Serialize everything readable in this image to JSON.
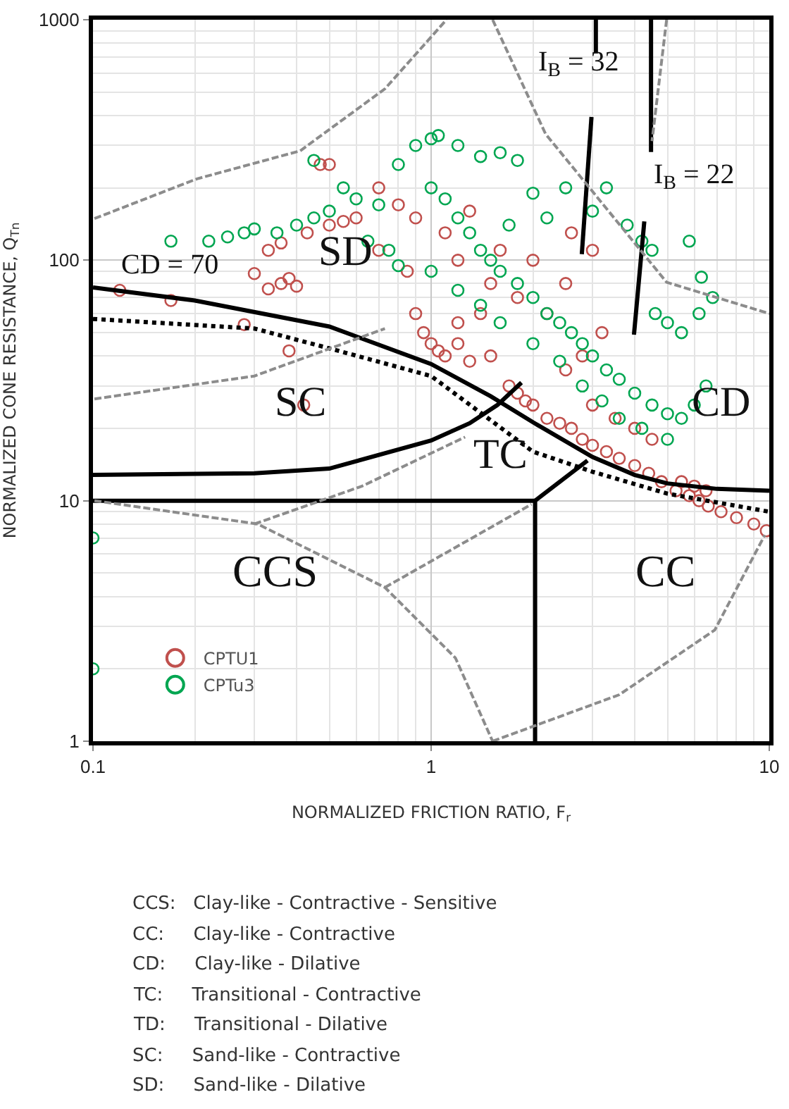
{
  "chart_data": {
    "type": "scatter",
    "xlabel": "NORMALIZED FRICTION RATIO, F$_{r}$",
    "ylabel": "NORMALIZED CONE RESISTANCE, Q$_{Tn}$",
    "log": "xy",
    "xlim": [
      0.1,
      10
    ],
    "ylim": [
      1,
      1000
    ],
    "xticks": [
      0.1,
      1,
      10
    ],
    "yticks": [
      1,
      10,
      100,
      1000
    ],
    "grid": true,
    "legend": "bottom left",
    "series": [
      {
        "name": "CPTU1",
        "color": "#c0504d",
        "marker": "circle",
        "x": [
          0.12,
          0.17,
          0.28,
          0.38,
          0.42,
          0.4,
          0.3,
          0.33,
          0.36,
          0.38,
          0.33,
          0.36,
          0.43,
          0.5,
          0.55,
          0.47,
          0.5,
          0.7,
          0.8,
          0.9,
          0.85,
          0.9,
          0.95,
          1.0,
          1.05,
          1.1,
          1.2,
          1.3,
          1.4,
          1.5,
          1.2,
          1.1,
          1.3,
          1.6,
          1.7,
          1.8,
          1.9,
          2.0,
          2.2,
          2.4,
          2.6,
          2.8,
          3.0,
          3.3,
          3.6,
          4.0,
          4.4,
          4.8,
          5.3,
          5.8,
          6.2,
          6.6,
          7.2,
          8,
          9,
          9.8,
          5.5,
          6,
          6.5,
          3.0,
          3.5,
          4,
          4.5,
          2.5,
          2.8,
          3.2,
          2.2,
          2.5,
          1.8,
          2.0,
          3.0,
          2.6,
          1.5,
          1.2,
          0.7,
          0.6
        ],
        "values": [
          75,
          68,
          54,
          42,
          25,
          78,
          88,
          76,
          80,
          84,
          110,
          118,
          130,
          140,
          145,
          250,
          250,
          200,
          170,
          150,
          90,
          60,
          50,
          45,
          42,
          40,
          45,
          38,
          60,
          80,
          100,
          130,
          160,
          110,
          30,
          28,
          26,
          25,
          22,
          21,
          20,
          18,
          17,
          16,
          15,
          14,
          13,
          12,
          11,
          10.5,
          10,
          9.5,
          9,
          8.5,
          8,
          7.5,
          12,
          11.5,
          11,
          25,
          22,
          20,
          18,
          35,
          40,
          50,
          60,
          80,
          70,
          100,
          110,
          130,
          40,
          55,
          110,
          150
        ]
      },
      {
        "name": "CPTu3",
        "color": "#00a651",
        "marker": "circle",
        "x": [
          0.1,
          0.1,
          0.17,
          0.22,
          0.25,
          0.28,
          0.3,
          0.35,
          0.4,
          0.45,
          0.5,
          0.45,
          0.55,
          0.6,
          0.7,
          0.8,
          0.9,
          1.0,
          1.05,
          1.2,
          1.4,
          1.6,
          1.8,
          1.0,
          1.1,
          1.2,
          1.3,
          1.4,
          1.5,
          1.6,
          1.8,
          2.0,
          2.2,
          2.4,
          2.6,
          2.8,
          3.0,
          3.3,
          3.6,
          4.0,
          4.5,
          5,
          5.5,
          6,
          6.5,
          0.75,
          0.8,
          1.0,
          1.2,
          1.4,
          1.6,
          2.0,
          2.4,
          2.8,
          3.2,
          3.6,
          4.2,
          5.0,
          4.6,
          5.0,
          5.5,
          6.2,
          6.8,
          6.3,
          5.8,
          4.5,
          3.3,
          3.0,
          2.5,
          2.2,
          2.0,
          1.7,
          3.8,
          4.2,
          0.65
        ],
        "values": [
          7,
          2,
          120,
          120,
          125,
          130,
          135,
          130,
          140,
          150,
          160,
          260,
          200,
          180,
          170,
          250,
          300,
          320,
          330,
          300,
          270,
          280,
          260,
          200,
          180,
          150,
          130,
          110,
          100,
          90,
          80,
          70,
          60,
          55,
          50,
          45,
          40,
          35,
          32,
          28,
          25,
          23,
          22,
          25,
          30,
          110,
          95,
          90,
          75,
          65,
          55,
          45,
          38,
          30,
          26,
          22,
          20,
          18,
          60,
          55,
          50,
          60,
          70,
          85,
          120,
          110,
          200,
          160,
          200,
          150,
          190,
          140,
          140,
          120,
          120
        ]
      },
      {
        "type": "line",
        "color": "#000000",
        "line_style": "solid",
        "x": [
          0.1,
          0.2,
          0.5,
          1,
          1.5,
          2,
          3,
          4,
          5,
          7,
          10
        ],
        "values": [
          77,
          68,
          53,
          37,
          27.2,
          21.2,
          15.2,
          12.8,
          11.8,
          11.2,
          11
        ]
      },
      {
        "type": "line",
        "color": "#000000",
        "line_style": "dotted",
        "x": [
          0.1,
          0.3,
          0.5,
          1,
          2,
          3,
          5,
          10
        ],
        "values": [
          57,
          52,
          43,
          33,
          16,
          13.2,
          10.7,
          9
        ]
      },
      {
        "type": "line",
        "color": "#000000",
        "line_style": "solid",
        "x": [
          0.1,
          0.3,
          0.5,
          1,
          1.3,
          1.57,
          1.85
        ],
        "values": [
          12.8,
          13,
          13.6,
          17.8,
          21,
          25,
          31
        ]
      },
      {
        "type": "line",
        "color": "#000000",
        "line_style": "solid",
        "x": [
          0.1,
          2.03,
          2.03
        ],
        "values": [
          10,
          10,
          1
        ]
      },
      {
        "type": "line",
        "color": "#000000",
        "line_style": "solid",
        "x": [
          2.03,
          2.9
        ],
        "values": [
          10,
          14.7
        ]
      },
      {
        "type": "line",
        "color": "#000000",
        "line_style": "solid",
        "x": [
          3.07,
          3.07
        ],
        "values": [
          1000,
          724
        ]
      },
      {
        "type": "line",
        "color": "#000000",
        "line_style": "solid",
        "x": [
          2.98,
          2.79
        ],
        "values": [
          394,
          106
        ]
      },
      {
        "type": "line",
        "color": "#000000",
        "line_style": "solid",
        "x": [
          4.47,
          4.47
        ],
        "values": [
          1000,
          282
        ]
      },
      {
        "type": "line",
        "color": "#000000",
        "line_style": "solid",
        "x": [
          4.27,
          3.98
        ],
        "values": [
          145,
          49
        ]
      },
      {
        "type": "line",
        "color": "#8c8c8c",
        "line_style": "dashed",
        "x": [
          0.101,
          0.203,
          0.41,
          0.73,
          1.11
        ],
        "values": [
          149,
          218,
          285,
          516,
          1000
        ]
      },
      {
        "type": "line",
        "color": "#8c8c8c",
        "line_style": "dashed",
        "x": [
          1.52,
          1.76,
          2.18,
          4.97,
          10
        ],
        "values": [
          1000,
          641,
          335,
          81,
          60
        ]
      },
      {
        "type": "line",
        "color": "#8c8c8c",
        "line_style": "dashed",
        "x": [
          0.101,
          0.3,
          0.73
        ],
        "values": [
          26.5,
          33,
          52
        ]
      },
      {
        "type": "line",
        "color": "#8c8c8c",
        "line_style": "dashed",
        "x": [
          4.97,
          4.5
        ],
        "values": [
          1000,
          313
        ]
      },
      {
        "type": "line",
        "color": "#8c8c8c",
        "line_style": "dashed",
        "x": [
          0.101,
          0.307,
          0.73,
          1.18,
          1.52
        ],
        "values": [
          10,
          8,
          4.36,
          2.22,
          1
        ]
      },
      {
        "type": "line",
        "color": "#8c8c8c",
        "line_style": "dashed",
        "x": [
          0.3,
          0.625,
          1.26
        ],
        "values": [
          8,
          11.5,
          18.4
        ]
      },
      {
        "type": "line",
        "color": "#8c8c8c",
        "line_style": "dashed",
        "x": [
          0.73,
          1.98
        ],
        "values": [
          4.36,
          9.66
        ]
      },
      {
        "type": "line",
        "color": "#8c8c8c",
        "line_style": "dashed",
        "x": [
          1.52,
          3.6,
          6.9,
          9.7
        ],
        "values": [
          1,
          1.56,
          2.9,
          7.2
        ]
      }
    ],
    "annotations": [
      "SC",
      "TC",
      "CCS",
      "CC",
      "CD",
      "SD",
      "CD = 70",
      "I$_{B}$ = 32",
      "I$_{B}$ = 22",
      "CCS:   Clay-like - Contractive - Sensitive",
      "CC:     Clay-like - Contractive",
      "CD:     Clay-like - Dilative",
      "TC:     Transitional - Contractive",
      "TD:     Transitional - Dilative",
      "SC:     Sand-like - Contractive",
      "SD:     Sand-like - Dilative"
    ]
  }
}
